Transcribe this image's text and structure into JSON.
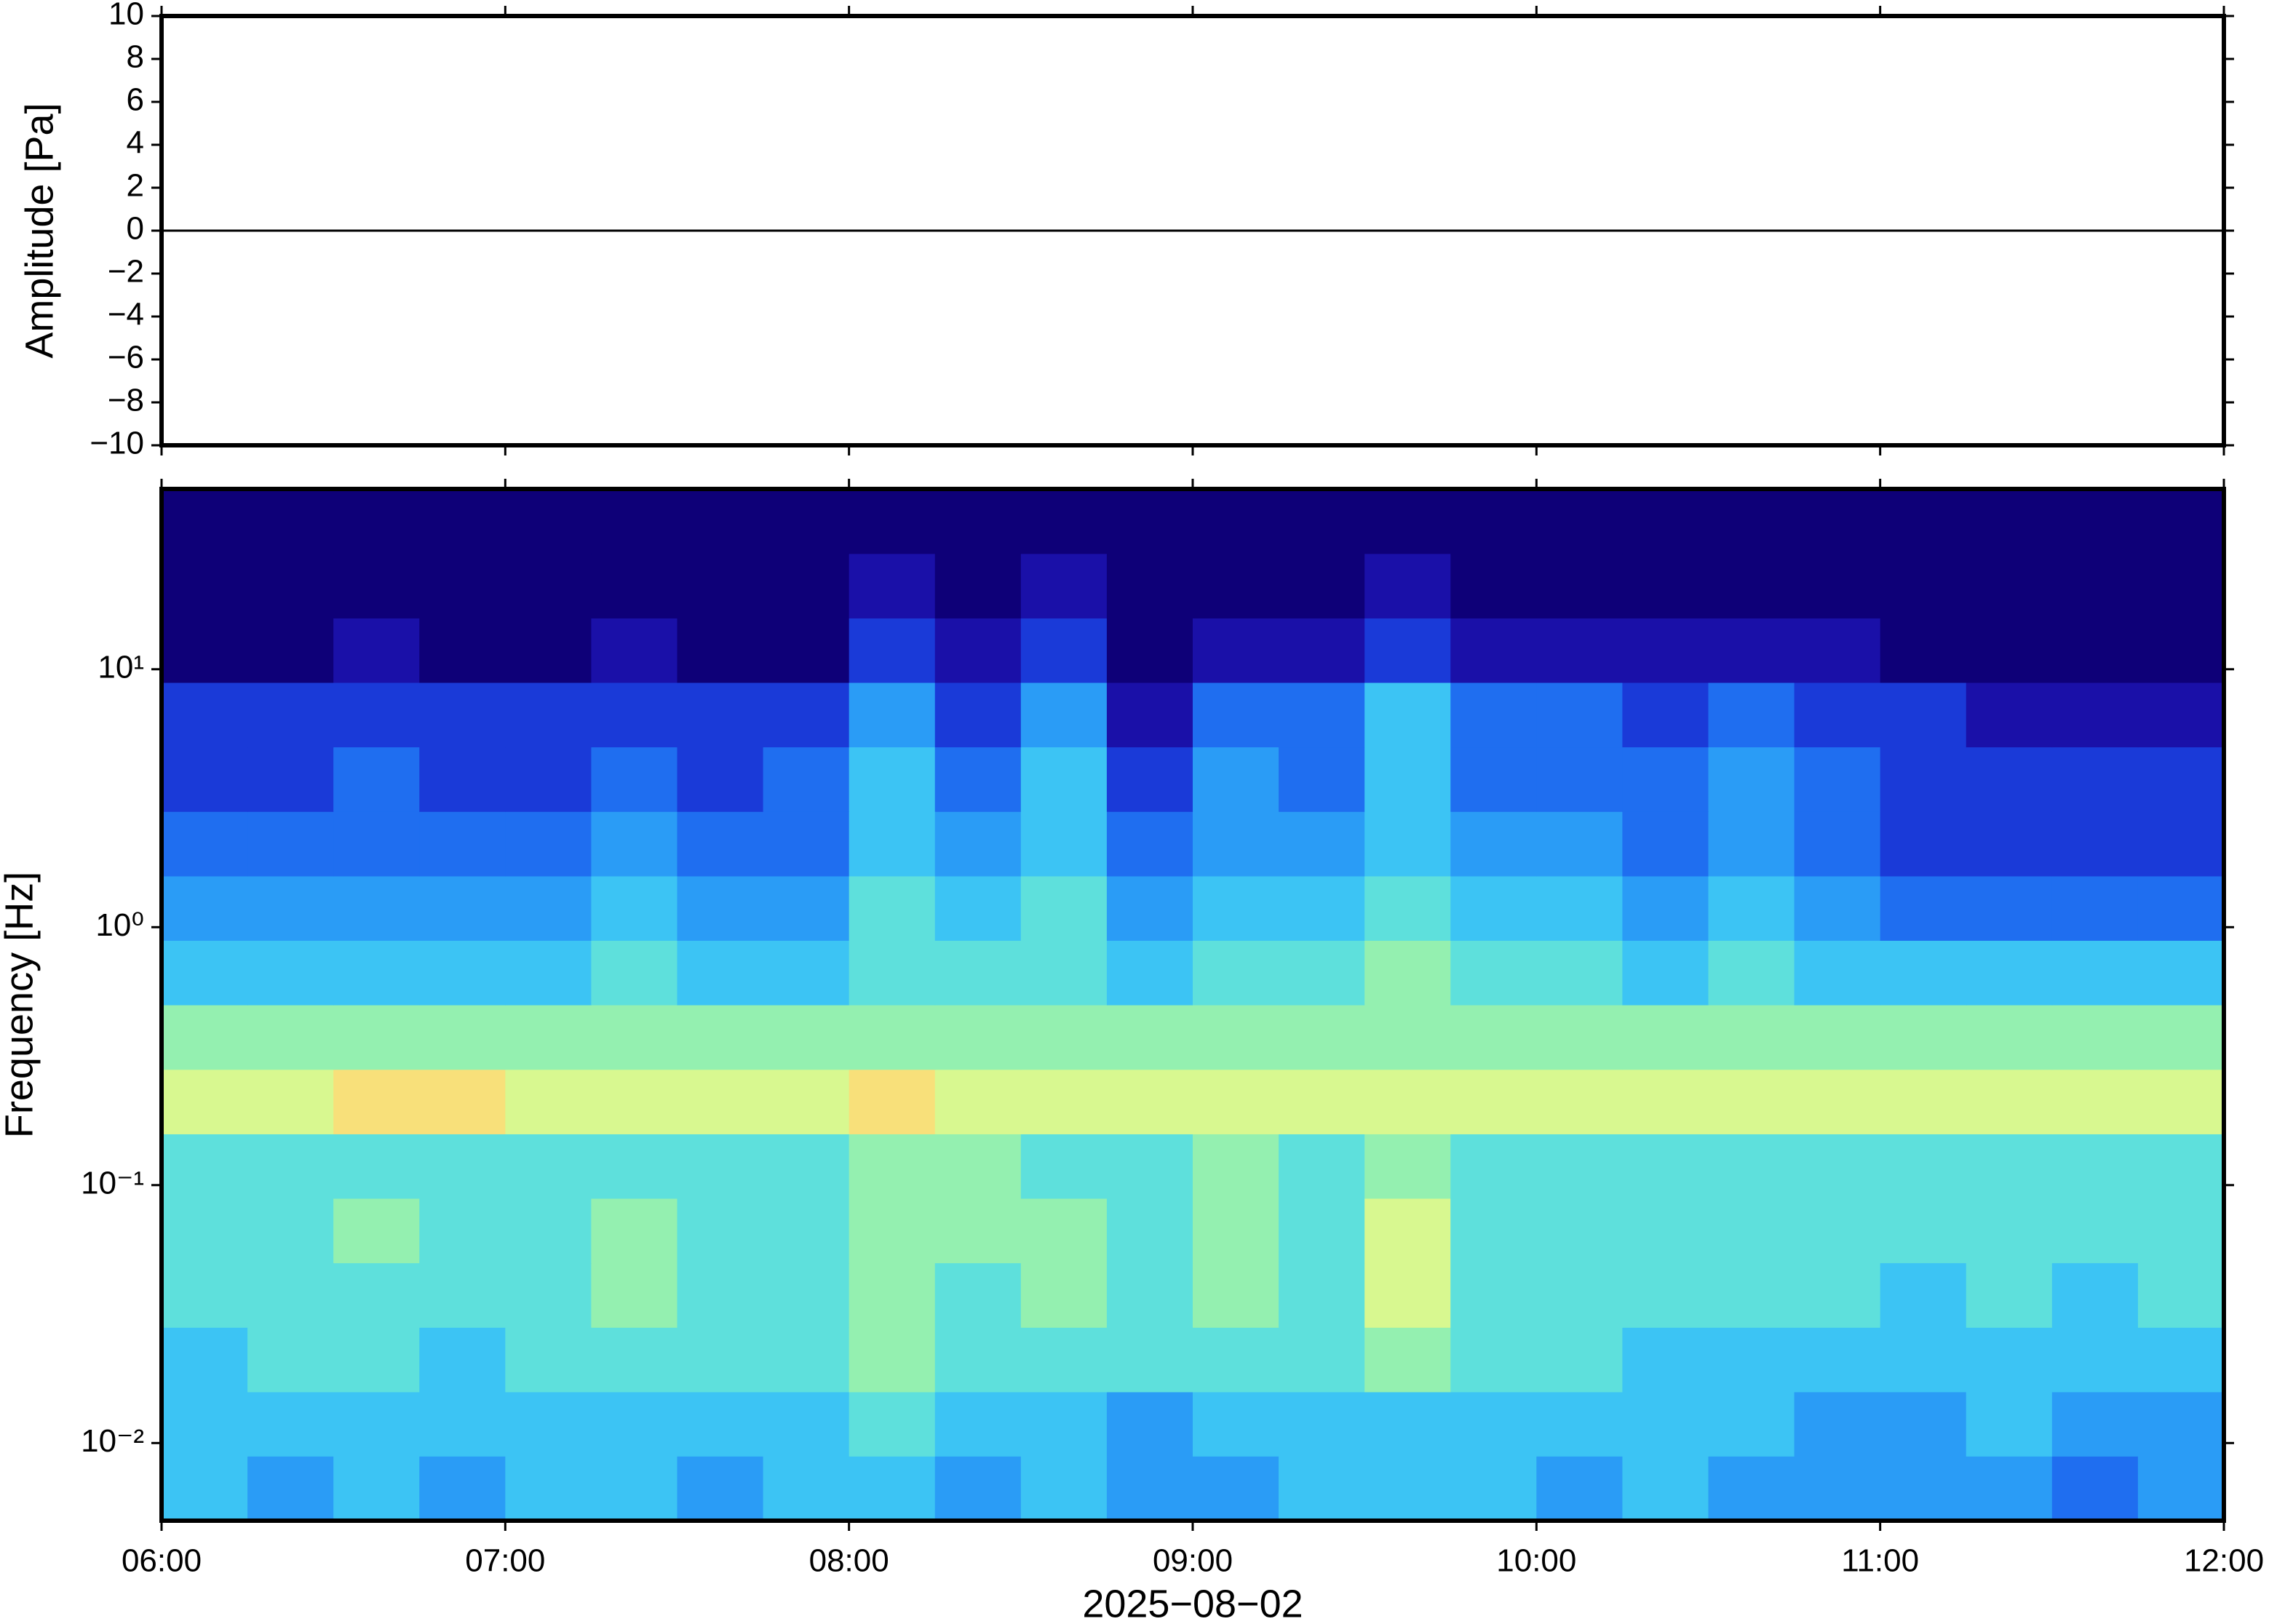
{
  "chart_data": [
    {
      "type": "line",
      "ylabel": "Amplitude [Pa]",
      "x": [
        "06:00",
        "06:15",
        "06:30",
        "06:45",
        "07:00",
        "07:15",
        "07:30",
        "07:45",
        "08:00",
        "08:15",
        "08:30",
        "08:45",
        "09:00",
        "09:15",
        "09:30",
        "09:45",
        "10:00",
        "10:15",
        "10:30",
        "10:45",
        "11:00",
        "11:15",
        "11:30",
        "11:45",
        "12:00"
      ],
      "series": [
        {
          "color": "#000000",
          "values": [
            0,
            0,
            0,
            0,
            0,
            0,
            0,
            0,
            0,
            0,
            0,
            0,
            0,
            0,
            0,
            0,
            0,
            0,
            0,
            0,
            0,
            0,
            0,
            0,
            0
          ]
        }
      ],
      "xlim": [
        "06:00",
        "12:00"
      ],
      "xticks": [
        "06:00",
        "07:00",
        "08:00",
        "09:00",
        "10:00",
        "11:00",
        "12:00"
      ],
      "ylim": [
        -10,
        10
      ],
      "yticks": [
        {
          "value": -10,
          "label": "−10"
        },
        {
          "value": -8,
          "label": "−8"
        },
        {
          "value": -6,
          "label": "−6"
        },
        {
          "value": -4,
          "label": "−4"
        },
        {
          "value": -2,
          "label": "−2"
        },
        0,
        2,
        4,
        6,
        8,
        10
      ]
    },
    {
      "type": "heatmap",
      "ylabel": "Frequency [Hz]",
      "xlabel": "2025−08−02",
      "log_y": true,
      "xbins": [
        "06:00",
        "06:15",
        "06:30",
        "06:45",
        "07:00",
        "07:15",
        "07:30",
        "07:45",
        "08:00",
        "08:15",
        "08:30",
        "08:45",
        "09:00",
        "09:15",
        "09:30",
        "09:45",
        "10:00",
        "10:15",
        "10:30",
        "10:45",
        "11:00",
        "11:15",
        "11:30",
        "11:45",
        "12:00"
      ],
      "ybins": [
        0.005,
        0.0089,
        0.0158,
        0.0281,
        0.05,
        0.0889,
        0.158,
        0.281,
        0.5,
        0.889,
        1.58,
        2.81,
        5,
        8.89,
        15.8,
        28.1,
        50
      ],
      "z": [
        [
          5,
          4,
          5,
          4,
          5,
          5,
          4,
          5,
          5,
          4,
          5,
          4,
          4,
          5,
          5,
          5,
          4,
          5,
          4,
          4,
          4,
          4,
          3,
          4
        ],
        [
          5,
          5,
          5,
          5,
          5,
          5,
          5,
          5,
          6,
          5,
          5,
          4,
          5,
          5,
          5,
          5,
          5,
          5,
          5,
          4,
          4,
          5,
          4,
          4
        ],
        [
          5,
          6,
          6,
          5,
          6,
          6,
          6,
          6,
          7,
          6,
          6,
          6,
          6,
          6,
          7,
          6,
          6,
          5,
          5,
          5,
          5,
          5,
          5,
          5
        ],
        [
          6,
          6,
          6,
          6,
          6,
          7,
          6,
          6,
          7,
          6,
          7,
          6,
          7,
          6,
          8,
          6,
          6,
          6,
          6,
          6,
          5,
          6,
          5,
          6
        ],
        [
          6,
          6,
          7,
          6,
          6,
          7,
          6,
          6,
          7,
          7,
          7,
          6,
          7,
          6,
          8,
          6,
          6,
          6,
          6,
          6,
          6,
          6,
          6,
          6
        ],
        [
          6,
          6,
          6,
          6,
          6,
          6,
          6,
          6,
          7,
          7,
          6,
          6,
          7,
          6,
          7,
          6,
          6,
          6,
          6,
          6,
          6,
          6,
          6,
          6
        ],
        [
          8,
          8,
          9,
          9,
          8,
          8,
          8,
          8,
          9,
          8,
          8,
          8,
          8,
          8,
          8,
          8,
          8,
          8,
          8,
          8,
          8,
          8,
          8,
          8
        ],
        [
          7,
          7,
          7,
          7,
          7,
          7,
          7,
          7,
          7,
          7,
          7,
          7,
          7,
          7,
          7,
          7,
          7,
          7,
          7,
          7,
          7,
          7,
          7,
          7
        ],
        [
          5,
          5,
          5,
          5,
          5,
          6,
          5,
          5,
          6,
          6,
          6,
          5,
          6,
          6,
          7,
          6,
          6,
          5,
          6,
          5,
          5,
          5,
          5,
          5
        ],
        [
          4,
          4,
          4,
          4,
          4,
          5,
          4,
          4,
          6,
          5,
          6,
          4,
          5,
          5,
          6,
          5,
          5,
          4,
          5,
          4,
          3,
          3,
          3,
          3
        ],
        [
          3,
          3,
          3,
          3,
          3,
          4,
          3,
          3,
          5,
          4,
          5,
          3,
          4,
          4,
          5,
          4,
          4,
          3,
          4,
          3,
          2,
          2,
          2,
          2
        ],
        [
          2,
          2,
          3,
          2,
          2,
          3,
          2,
          3,
          5,
          3,
          5,
          2,
          4,
          3,
          5,
          3,
          3,
          3,
          4,
          3,
          2,
          2,
          2,
          2
        ],
        [
          2,
          2,
          2,
          2,
          2,
          2,
          2,
          2,
          4,
          2,
          4,
          1,
          3,
          3,
          5,
          3,
          3,
          2,
          3,
          2,
          2,
          1,
          1,
          1
        ],
        [
          0,
          0,
          1,
          0,
          0,
          1,
          0,
          0,
          2,
          1,
          2,
          0,
          1,
          1,
          2,
          1,
          1,
          1,
          1,
          1,
          0,
          0,
          0,
          0
        ],
        [
          0,
          0,
          0,
          0,
          0,
          0,
          0,
          0,
          1,
          0,
          1,
          0,
          0,
          0,
          1,
          0,
          0,
          0,
          0,
          0,
          0,
          0,
          0,
          0
        ],
        [
          0,
          0,
          0,
          0,
          0,
          0,
          0,
          0,
          0,
          0,
          0,
          0,
          0,
          0,
          0,
          0,
          0,
          0,
          0,
          0,
          0,
          0,
          0,
          0
        ]
      ],
      "colors": [
        "#0e0078",
        "#1a10a8",
        "#1a3ad8",
        "#1f6ef0",
        "#2a9cf6",
        "#3cc4f4",
        "#5ee0dc",
        "#94f0b0",
        "#d8f890",
        "#f8e07a",
        "#f8a860"
      ],
      "xlim": [
        "06:00",
        "12:00"
      ],
      "xticks": [
        "06:00",
        "07:00",
        "08:00",
        "09:00",
        "10:00",
        "11:00",
        "12:00"
      ],
      "ylim": [
        0.005,
        50
      ],
      "yticks": [
        {
          "value": 0.01,
          "label": "10⁻²"
        },
        {
          "value": 0.1,
          "label": "10⁻¹"
        },
        {
          "value": 1,
          "label": "10⁰"
        },
        {
          "value": 10,
          "label": "10¹"
        }
      ]
    }
  ]
}
